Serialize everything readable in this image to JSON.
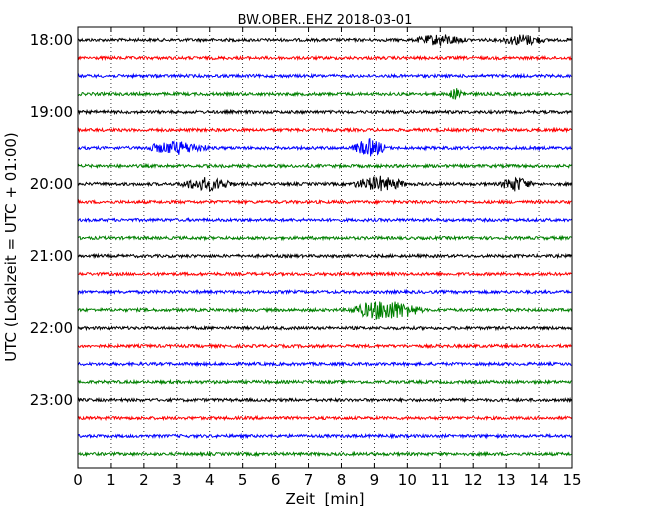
{
  "chart_data": {
    "type": "line",
    "title": "BW.OBER..EHZ 2018-03-01",
    "xlabel": "Zeit  [min]",
    "ylabel": "UTC (Lokalzeit = UTC + 01:00)",
    "xlim": [
      0,
      15
    ],
    "x_ticks": [
      "0",
      "1",
      "2",
      "3",
      "4",
      "5",
      "6",
      "7",
      "8",
      "9",
      "10",
      "11",
      "12",
      "13",
      "14",
      "15"
    ],
    "y_ticks": [
      "18:00",
      "19:00",
      "20:00",
      "21:00",
      "22:00",
      "23:00"
    ],
    "grid": "vertical dotted",
    "traces_per_hour": 4,
    "trace_minutes": 15,
    "colors": [
      "#000000",
      "#ff0000",
      "#0000ff",
      "#008000"
    ],
    "series": [
      {
        "values": [
          {
            "start": "18:00",
            "events": [
              {
                "from": 10.2,
                "to": 11.8,
                "amp": 5
              },
              {
                "from": 12.8,
                "to": 14.2,
                "amp": 5
              }
            ]
          }
        ]
      },
      {
        "values": [
          {
            "start": "18:15",
            "events": []
          }
        ]
      },
      {
        "values": [
          {
            "start": "18:30",
            "events": []
          }
        ]
      },
      {
        "values": [
          {
            "start": "18:45",
            "events": [
              {
                "from": 11.2,
                "to": 11.8,
                "amp": 5
              }
            ]
          }
        ]
      },
      {
        "values": [
          {
            "start": "19:00",
            "events": []
          }
        ]
      },
      {
        "values": [
          {
            "start": "19:15",
            "events": []
          }
        ]
      },
      {
        "values": [
          {
            "start": "19:30",
            "events": [
              {
                "from": 2.0,
                "to": 4.0,
                "amp": 6
              },
              {
                "from": 8.3,
                "to": 9.4,
                "amp": 8
              }
            ]
          }
        ]
      },
      {
        "values": [
          {
            "start": "19:45",
            "events": []
          }
        ]
      },
      {
        "values": [
          {
            "start": "20:00",
            "events": [
              {
                "from": 3.0,
                "to": 4.8,
                "amp": 6
              },
              {
                "from": 8.3,
                "to": 10.0,
                "amp": 7
              },
              {
                "from": 12.8,
                "to": 13.8,
                "amp": 7
              }
            ]
          }
        ]
      },
      {
        "values": [
          {
            "start": "20:15",
            "events": []
          }
        ]
      },
      {
        "values": [
          {
            "start": "20:30",
            "events": []
          }
        ]
      },
      {
        "values": [
          {
            "start": "20:45",
            "events": []
          }
        ]
      },
      {
        "values": [
          {
            "start": "21:00",
            "events": []
          }
        ]
      },
      {
        "values": [
          {
            "start": "21:15",
            "events": []
          }
        ]
      },
      {
        "values": [
          {
            "start": "21:30",
            "events": []
          }
        ]
      },
      {
        "values": [
          {
            "start": "21:45",
            "events": [
              {
                "from": 8.2,
                "to": 10.5,
                "amp": 10
              }
            ]
          }
        ]
      },
      {
        "values": [
          {
            "start": "22:00",
            "events": []
          }
        ]
      },
      {
        "values": [
          {
            "start": "22:15",
            "events": []
          }
        ]
      },
      {
        "values": [
          {
            "start": "22:30",
            "events": []
          }
        ]
      },
      {
        "values": [
          {
            "start": "22:45",
            "events": []
          }
        ]
      },
      {
        "values": [
          {
            "start": "23:00",
            "events": []
          }
        ]
      },
      {
        "values": [
          {
            "start": "23:15",
            "events": []
          }
        ]
      },
      {
        "values": [
          {
            "start": "23:30",
            "events": []
          }
        ]
      },
      {
        "values": [
          {
            "start": "23:45",
            "events": []
          }
        ]
      }
    ]
  }
}
